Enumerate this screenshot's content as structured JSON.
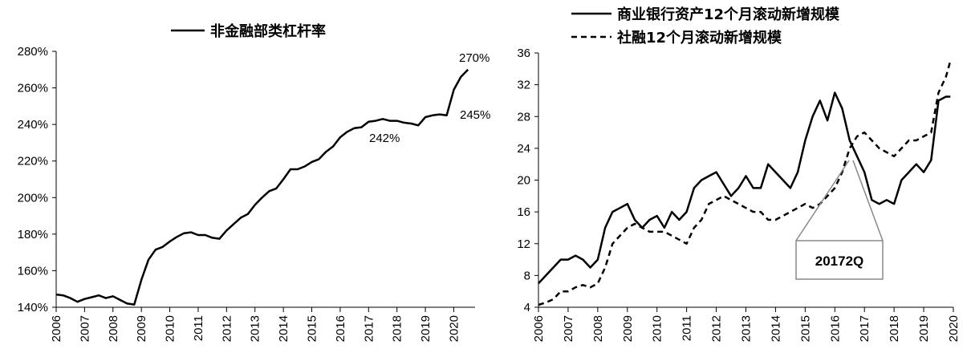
{
  "chart_data": [
    {
      "type": "line",
      "title": "",
      "xlabel": "",
      "ylabel": "",
      "x_ticks": [
        "2006",
        "2007",
        "2008",
        "2009",
        "2010",
        "2011",
        "2012",
        "2013",
        "2014",
        "2015",
        "2016",
        "2017",
        "2018",
        "2019",
        "2020"
      ],
      "y_ticks": [
        "140%",
        "160%",
        "180%",
        "200%",
        "220%",
        "240%",
        "260%",
        "280%"
      ],
      "ylim": [
        140,
        280
      ],
      "xlim": [
        2006,
        2020.75
      ],
      "grid": false,
      "legend_position": "top-center",
      "series": [
        {
          "name": "非金融部类杠杆率",
          "style": "solid",
          "color": "#000000",
          "x": [
            2006.0,
            2006.25,
            2006.5,
            2006.75,
            2007.0,
            2007.25,
            2007.5,
            2007.75,
            2008.0,
            2008.25,
            2008.5,
            2008.75,
            2009.0,
            2009.25,
            2009.5,
            2009.75,
            2010.0,
            2010.25,
            2010.5,
            2010.75,
            2011.0,
            2011.25,
            2011.5,
            2011.75,
            2012.0,
            2012.25,
            2012.5,
            2012.75,
            2013.0,
            2013.25,
            2013.5,
            2013.75,
            2014.0,
            2014.25,
            2014.5,
            2014.75,
            2015.0,
            2015.25,
            2015.5,
            2015.75,
            2016.0,
            2016.25,
            2016.5,
            2016.75,
            2017.0,
            2017.25,
            2017.5,
            2017.75,
            2018.0,
            2018.25,
            2018.5,
            2018.75,
            2019.0,
            2019.25,
            2019.5,
            2019.75,
            2020.0,
            2020.25,
            2020.5
          ],
          "values": [
            147,
            146.5,
            145,
            143,
            144.5,
            145.5,
            146.5,
            145,
            146,
            144,
            142,
            141.5,
            155,
            166,
            171.5,
            173,
            176,
            178.5,
            180.5,
            181,
            179.5,
            179.5,
            178,
            177.5,
            182,
            185.5,
            189,
            191,
            196,
            200,
            203.5,
            205,
            210,
            215.5,
            215.5,
            217,
            219.5,
            221,
            225,
            228,
            233,
            236,
            238,
            238.5,
            241.5,
            242,
            243,
            242,
            242,
            241,
            240.5,
            239.5,
            244,
            245,
            245.5,
            245,
            259,
            266,
            270
          ]
        }
      ],
      "annotations": [
        "270%",
        "245%",
        "242%"
      ]
    },
    {
      "type": "line",
      "title": "",
      "xlabel": "",
      "ylabel": "",
      "x_ticks": [
        "2006",
        "2007",
        "2008",
        "2009",
        "2010",
        "2011",
        "2012",
        "2013",
        "2014",
        "2015",
        "2016",
        "2017",
        "2018",
        "2019",
        "2020"
      ],
      "y_ticks": [
        "4",
        "8",
        "12",
        "16",
        "20",
        "24",
        "28",
        "32",
        "36"
      ],
      "ylim": [
        4,
        36
      ],
      "xlim": [
        2006,
        2020
      ],
      "grid": false,
      "legend_position": "top",
      "series": [
        {
          "name": "商业银行资产12个月滚动新增规模",
          "style": "solid",
          "color": "#000000",
          "x": [
            2006.0,
            2006.25,
            2006.5,
            2006.75,
            2007.0,
            2007.25,
            2007.5,
            2007.75,
            2008.0,
            2008.25,
            2008.5,
            2008.75,
            2009.0,
            2009.25,
            2009.5,
            2009.75,
            2010.0,
            2010.25,
            2010.5,
            2010.75,
            2011.0,
            2011.25,
            2011.5,
            2011.75,
            2012.0,
            2012.25,
            2012.5,
            2012.75,
            2013.0,
            2013.25,
            2013.5,
            2013.75,
            2014.0,
            2014.25,
            2014.5,
            2014.75,
            2015.0,
            2015.25,
            2015.5,
            2015.75,
            2016.0,
            2016.25,
            2016.5,
            2016.75,
            2017.0,
            2017.25,
            2017.5,
            2017.75,
            2018.0,
            2018.25,
            2018.5,
            2018.75,
            2019.0,
            2019.25,
            2019.5,
            2019.75,
            2019.9
          ],
          "values": [
            7,
            8,
            9,
            10,
            10,
            10.5,
            10,
            9,
            10,
            14,
            16,
            16.5,
            17,
            15,
            14,
            15,
            15.5,
            14,
            16,
            15,
            16,
            19,
            20,
            20.5,
            21,
            19.5,
            18,
            19,
            20.5,
            19,
            19,
            22,
            21,
            20,
            19,
            21,
            25,
            28,
            30,
            27.5,
            31,
            29,
            25,
            23,
            21,
            17.5,
            17,
            17.5,
            17,
            20,
            21,
            22,
            21,
            22.5,
            30,
            30.5,
            30.5
          ]
        },
        {
          "name": "社融12个月滚动新增规模",
          "style": "dashed",
          "color": "#000000",
          "x": [
            2006.0,
            2006.25,
            2006.5,
            2006.75,
            2007.0,
            2007.25,
            2007.5,
            2007.75,
            2008.0,
            2008.25,
            2008.5,
            2008.75,
            2009.0,
            2009.25,
            2009.5,
            2009.75,
            2010.0,
            2010.25,
            2010.5,
            2010.75,
            2011.0,
            2011.25,
            2011.5,
            2011.75,
            2012.0,
            2012.25,
            2012.5,
            2012.75,
            2013.0,
            2013.25,
            2013.5,
            2013.75,
            2014.0,
            2014.25,
            2014.5,
            2014.75,
            2015.0,
            2015.25,
            2015.5,
            2015.75,
            2016.0,
            2016.25,
            2016.5,
            2016.75,
            2017.0,
            2017.25,
            2017.5,
            2017.75,
            2018.0,
            2018.25,
            2018.5,
            2018.75,
            2019.0,
            2019.25,
            2019.5,
            2019.75,
            2019.9
          ],
          "values": [
            4.3,
            4.6,
            5,
            6,
            6,
            6.5,
            6.8,
            6.5,
            7,
            9,
            12,
            13,
            14,
            14.5,
            14,
            13.5,
            13.5,
            13.5,
            13,
            12.5,
            12,
            14,
            15,
            17,
            17.5,
            18,
            17.5,
            17,
            16.5,
            16,
            16,
            15,
            15,
            15.5,
            16,
            16.5,
            17,
            16.5,
            17,
            18,
            19,
            21,
            24,
            25.5,
            26,
            25,
            24,
            23.5,
            23,
            24,
            25,
            25,
            25.5,
            26,
            31,
            33,
            35
          ]
        }
      ],
      "annotations": [
        "20172Q"
      ]
    }
  ]
}
